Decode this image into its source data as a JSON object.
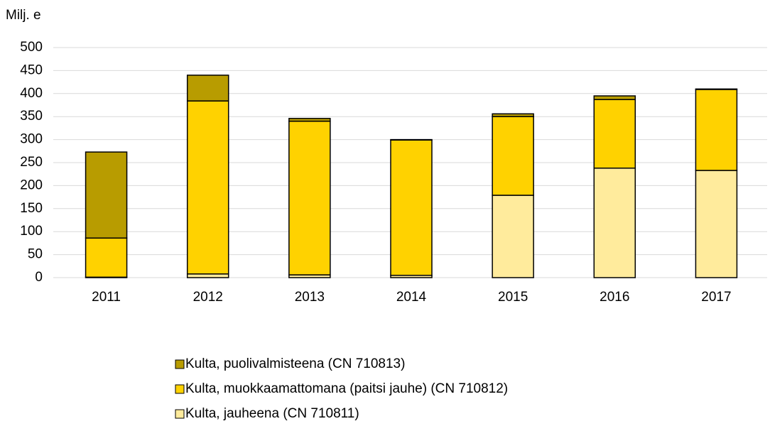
{
  "chart_data": {
    "type": "stacked_bar",
    "title": "Milj. e",
    "categories": [
      "2011",
      "2012",
      "2013",
      "2014",
      "2015",
      "2016",
      "2017"
    ],
    "series": [
      {
        "name": "Kulta, puolivalmisteena (CN 710813)",
        "color": "#b89c00",
        "values": [
          187,
          56,
          6,
          1,
          6,
          8,
          1
        ]
      },
      {
        "name": "Kulta, muokkaamattomana (paitsi jauhe) (CN 710812)",
        "color": "#ffd200",
        "values": [
          85,
          376,
          334,
          294,
          171,
          149,
          176
        ]
      },
      {
        "name": "Kulta, jauheena (CN 710811)",
        "color": "#ffeb9c",
        "values": [
          1,
          8,
          6,
          5,
          179,
          238,
          233
        ]
      }
    ],
    "ylim": [
      0,
      500
    ],
    "yticks": [
      0,
      50,
      100,
      150,
      200,
      250,
      300,
      350,
      400,
      450,
      500
    ],
    "grid": true
  }
}
